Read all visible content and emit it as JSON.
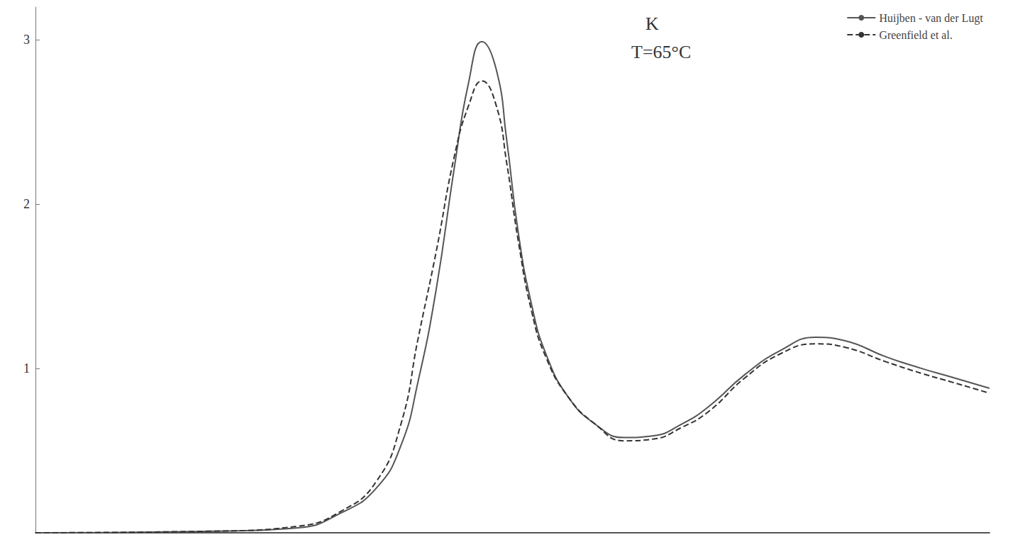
{
  "chart_data": {
    "type": "line",
    "annotations": [
      "K",
      "T=65°C"
    ],
    "x": [
      0,
      18.6,
      27.5,
      32,
      35.7,
      38.3,
      40.1,
      42,
      43.9,
      45.4,
      46.8,
      48.3,
      49.4,
      50.6,
      52,
      53.5,
      55.8,
      58.7,
      61.7,
      64.7,
      67.7,
      70.6,
      74.3,
      78.1,
      81.8,
      84.8,
      89.2,
      92.9,
      95.9,
      100
    ],
    "series": [
      {
        "name": "Huijben - van der Lugt",
        "color": "#555555",
        "line_style": "solid",
        "values": [
          0,
          0.01,
          0.03,
          0.12,
          0.27,
          0.53,
          0.92,
          1.48,
          2.22,
          2.74,
          2.99,
          2.82,
          2.39,
          1.83,
          1.39,
          1.09,
          0.83,
          0.66,
          0.58,
          0.59,
          0.66,
          0.77,
          0.96,
          1.11,
          1.19,
          1.17,
          1.07,
          1.0,
          0.95,
          0.88
        ]
      },
      {
        "name": "Greenfield et al.",
        "color": "#333333",
        "line_style": "dashed",
        "values": [
          0,
          0.01,
          0.04,
          0.13,
          0.31,
          0.66,
          1.18,
          1.71,
          2.29,
          2.6,
          2.75,
          2.6,
          2.25,
          1.78,
          1.35,
          1.07,
          0.83,
          0.66,
          0.56,
          0.57,
          0.64,
          0.74,
          0.94,
          1.09,
          1.15,
          1.13,
          1.04,
          0.97,
          0.92,
          0.85
        ]
      }
    ],
    "xlim": [
      0,
      100
    ],
    "ylim": [
      0,
      3.2
    ],
    "yticks": [
      1,
      2,
      3
    ],
    "grid": false,
    "legend": "top-right",
    "tick_labels": "y"
  }
}
